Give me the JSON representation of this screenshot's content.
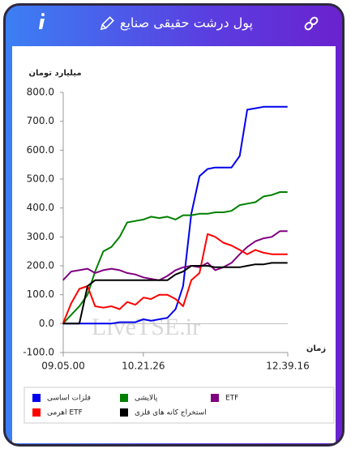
{
  "header": {
    "title": "پول درشت حقیقی صنایع"
  },
  "chart_data": {
    "type": "line",
    "y_label": "میلیارد تومان",
    "x_label": "زمان",
    "watermark": "LiveTSE.ir",
    "x": [
      9.08,
      9.21,
      9.34,
      9.47,
      9.59,
      9.72,
      9.85,
      9.98,
      10.1,
      10.23,
      10.36,
      10.48,
      10.61,
      10.74,
      10.87,
      10.99,
      11.12,
      11.25,
      11.38,
      11.5,
      11.63,
      11.76,
      11.89,
      12.01,
      12.14,
      12.27,
      12.4,
      12.53,
      12.65
    ],
    "xlim": [
      9.0833,
      12.6544
    ],
    "xticks": [
      {
        "value": 9.0833,
        "label": "09.05.00"
      },
      {
        "value": 10.3572,
        "label": "10.21.26"
      },
      {
        "value": 12.6544,
        "label": "12.39.16"
      }
    ],
    "ylim": [
      -100,
      800
    ],
    "yticks": [
      {
        "value": -100,
        "label": "-100.0"
      },
      {
        "value": 0,
        "label": "0.0"
      },
      {
        "value": 100,
        "label": "100.0"
      },
      {
        "value": 200,
        "label": "200.0"
      },
      {
        "value": 300,
        "label": "300.0"
      },
      {
        "value": 400,
        "label": "400.0"
      },
      {
        "value": 500,
        "label": "500.0"
      },
      {
        "value": 600,
        "label": "600.0"
      },
      {
        "value": 700,
        "label": "700.0"
      },
      {
        "value": 800,
        "label": "800.0"
      }
    ],
    "grid": false,
    "legend": "bottom",
    "series": [
      {
        "name": "فلزات اساسی",
        "color": "#0000ee",
        "values": [
          0,
          0,
          0,
          0,
          0,
          0,
          0,
          5,
          5,
          5,
          15,
          10,
          15,
          20,
          50,
          130,
          380,
          510,
          535,
          540,
          540,
          540,
          580,
          740,
          745,
          750,
          750,
          750,
          750
        ]
      },
      {
        "name": "پالایشی",
        "color": "#008000",
        "values": [
          0,
          30,
          60,
          100,
          180,
          250,
          265,
          300,
          350,
          355,
          360,
          370,
          365,
          370,
          360,
          375,
          375,
          380,
          380,
          385,
          385,
          390,
          410,
          415,
          420,
          440,
          445,
          455,
          455
        ]
      },
      {
        "name": "ETF",
        "color": "#800080",
        "values": [
          150,
          180,
          185,
          190,
          175,
          185,
          190,
          185,
          175,
          170,
          160,
          155,
          150,
          165,
          185,
          195,
          200,
          195,
          210,
          185,
          195,
          210,
          240,
          265,
          285,
          295,
          300,
          320,
          320
        ]
      },
      {
        "name": "اهرمی ETF",
        "color": "#ff0000",
        "values": [
          0,
          70,
          120,
          130,
          60,
          55,
          60,
          50,
          75,
          65,
          90,
          85,
          100,
          100,
          85,
          60,
          150,
          175,
          310,
          300,
          280,
          270,
          255,
          240,
          255,
          245,
          240,
          240,
          240
        ]
      },
      {
        "name": "استخراج کانه های فلزی",
        "color": "#000000",
        "values": [
          0,
          0,
          0,
          130,
          150,
          150,
          150,
          150,
          150,
          150,
          150,
          150,
          150,
          150,
          170,
          180,
          200,
          200,
          200,
          195,
          195,
          195,
          195,
          200,
          205,
          205,
          210,
          210,
          210
        ]
      }
    ]
  }
}
